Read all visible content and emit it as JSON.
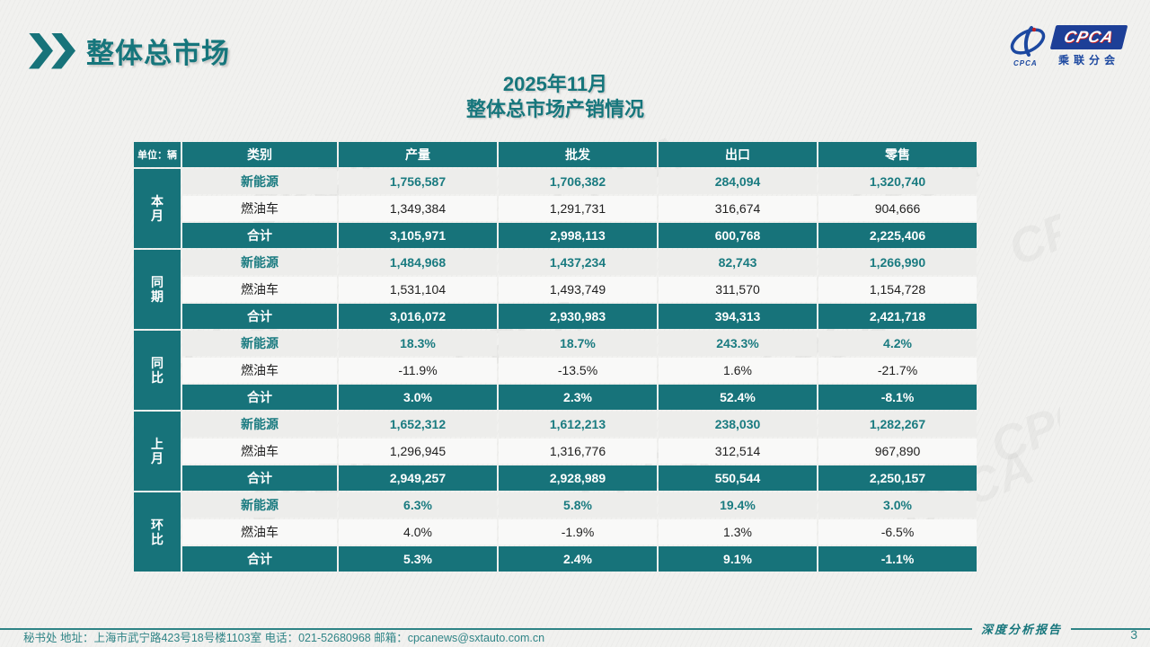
{
  "page": {
    "title": "整体总市场",
    "slide_title_line1": "2025年11月",
    "slide_title_line2": "整体总市场产销情况",
    "report_label": "深度分析报告",
    "page_number": "3",
    "footer_contact": "秘书处   地址：上海市武宁路423号18号楼1103室  电话：021-52680968   邮箱：cpcanews@sxtauto.com.cn",
    "watermark": "CPCA"
  },
  "logo": {
    "box_text": "CPCA",
    "subtext": "乘联分会"
  },
  "colors": {
    "accent_teal": "#17737A",
    "nev_text": "#1A7B80",
    "logo_blue": "#1C48A0",
    "logo_box_blue": "#1D3F97",
    "footer_teal": "#2F8486",
    "background": "#f1f1ef"
  },
  "table": {
    "unit_label": "单位：辆",
    "columns": [
      "类别",
      "产量",
      "批发",
      "出口",
      "零售"
    ],
    "groups": [
      {
        "label": "本月",
        "rows": [
          {
            "name": "新能源",
            "style": "nev",
            "values": [
              "1,756,587",
              "1,706,382",
              "284,094",
              "1,320,740"
            ]
          },
          {
            "name": "燃油车",
            "style": "fuel",
            "values": [
              "1,349,384",
              "1,291,731",
              "316,674",
              "904,666"
            ]
          },
          {
            "name": "合计",
            "style": "total",
            "values": [
              "3,105,971",
              "2,998,113",
              "600,768",
              "2,225,406"
            ]
          }
        ]
      },
      {
        "label": "同期",
        "rows": [
          {
            "name": "新能源",
            "style": "nev",
            "values": [
              "1,484,968",
              "1,437,234",
              "82,743",
              "1,266,990"
            ]
          },
          {
            "name": "燃油车",
            "style": "fuel",
            "values": [
              "1,531,104",
              "1,493,749",
              "311,570",
              "1,154,728"
            ]
          },
          {
            "name": "合计",
            "style": "total",
            "values": [
              "3,016,072",
              "2,930,983",
              "394,313",
              "2,421,718"
            ]
          }
        ]
      },
      {
        "label": "同比",
        "rows": [
          {
            "name": "新能源",
            "style": "nev",
            "values": [
              "18.3%",
              "18.7%",
              "243.3%",
              "4.2%"
            ]
          },
          {
            "name": "燃油车",
            "style": "fuel",
            "values": [
              "-11.9%",
              "-13.5%",
              "1.6%",
              "-21.7%"
            ]
          },
          {
            "name": "合计",
            "style": "total",
            "values": [
              "3.0%",
              "2.3%",
              "52.4%",
              "-8.1%"
            ]
          }
        ]
      },
      {
        "label": "上月",
        "rows": [
          {
            "name": "新能源",
            "style": "nev",
            "values": [
              "1,652,312",
              "1,612,213",
              "238,030",
              "1,282,267"
            ]
          },
          {
            "name": "燃油车",
            "style": "fuel",
            "values": [
              "1,296,945",
              "1,316,776",
              "312,514",
              "967,890"
            ]
          },
          {
            "name": "合计",
            "style": "total",
            "values": [
              "2,949,257",
              "2,928,989",
              "550,544",
              "2,250,157"
            ]
          }
        ]
      },
      {
        "label": "环比",
        "rows": [
          {
            "name": "新能源",
            "style": "nev",
            "values": [
              "6.3%",
              "5.8%",
              "19.4%",
              "3.0%"
            ]
          },
          {
            "name": "燃油车",
            "style": "fuel",
            "values": [
              "4.0%",
              "-1.9%",
              "1.3%",
              "-6.5%"
            ]
          },
          {
            "name": "合计",
            "style": "total",
            "values": [
              "5.3%",
              "2.4%",
              "9.1%",
              "-1.1%"
            ]
          }
        ]
      }
    ]
  }
}
